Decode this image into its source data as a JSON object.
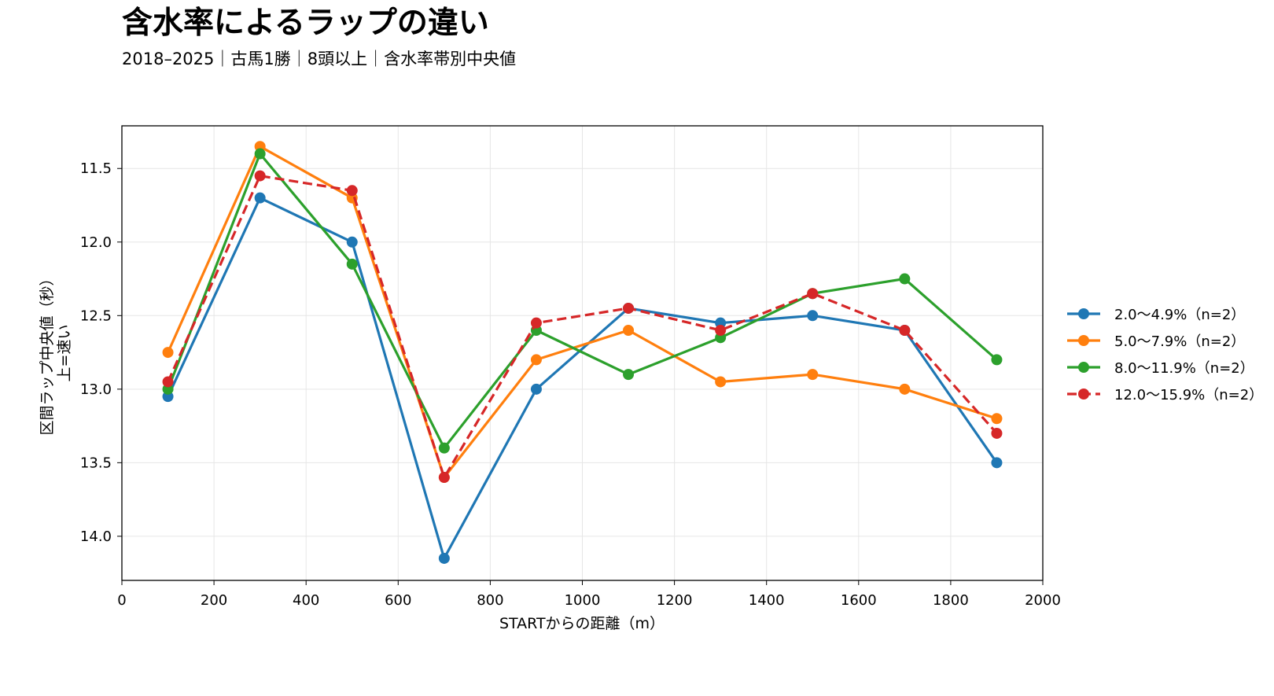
{
  "chart_data": {
    "type": "line",
    "title": "含水率によるラップの違い",
    "subtitle": "2018–2025｜古馬1勝｜8頭以上｜含水率帯別中央値",
    "xlabel": "STARTからの距離（m）",
    "ylabel_lines": [
      "区間ラップ中央値（秒）",
      "上=速い"
    ],
    "xlim": [
      0,
      2000
    ],
    "ylim": [
      14.3,
      11.21
    ],
    "y_inverted": true,
    "xticks": [
      0,
      200,
      400,
      600,
      800,
      1000,
      1200,
      1400,
      1600,
      1800,
      2000
    ],
    "yticks": [
      11.5,
      12.0,
      12.5,
      13.0,
      13.5,
      14.0
    ],
    "ytick_labels": [
      "11.5",
      "12.0",
      "12.5",
      "13.0",
      "13.5",
      "14.0"
    ],
    "grid": true,
    "legend_position": "right, outside plot",
    "x": [
      100,
      300,
      500,
      700,
      900,
      1100,
      1300,
      1500,
      1700,
      1900
    ],
    "series": [
      {
        "name": "2.0〜4.9%（n=2）",
        "color": "#1f77b4",
        "dashed": false,
        "values": [
          13.05,
          11.7,
          12.0,
          14.15,
          13.0,
          12.45,
          12.55,
          12.5,
          12.6,
          13.5
        ]
      },
      {
        "name": "5.0〜7.9%（n=2）",
        "color": "#ff7f0e",
        "dashed": false,
        "values": [
          12.75,
          11.35,
          11.7,
          13.6,
          12.8,
          12.6,
          12.95,
          12.9,
          13.0,
          13.2
        ]
      },
      {
        "name": "8.0〜11.9%（n=2）",
        "color": "#2ca02c",
        "dashed": false,
        "values": [
          13.0,
          11.4,
          12.15,
          13.4,
          12.6,
          12.9,
          12.65,
          12.35,
          12.25,
          12.8
        ]
      },
      {
        "name": "12.0〜15.9%（n=2）",
        "color": "#d62728",
        "dashed": true,
        "values": [
          12.95,
          11.55,
          11.65,
          13.6,
          12.55,
          12.45,
          12.6,
          12.35,
          12.6,
          13.3
        ]
      }
    ]
  }
}
